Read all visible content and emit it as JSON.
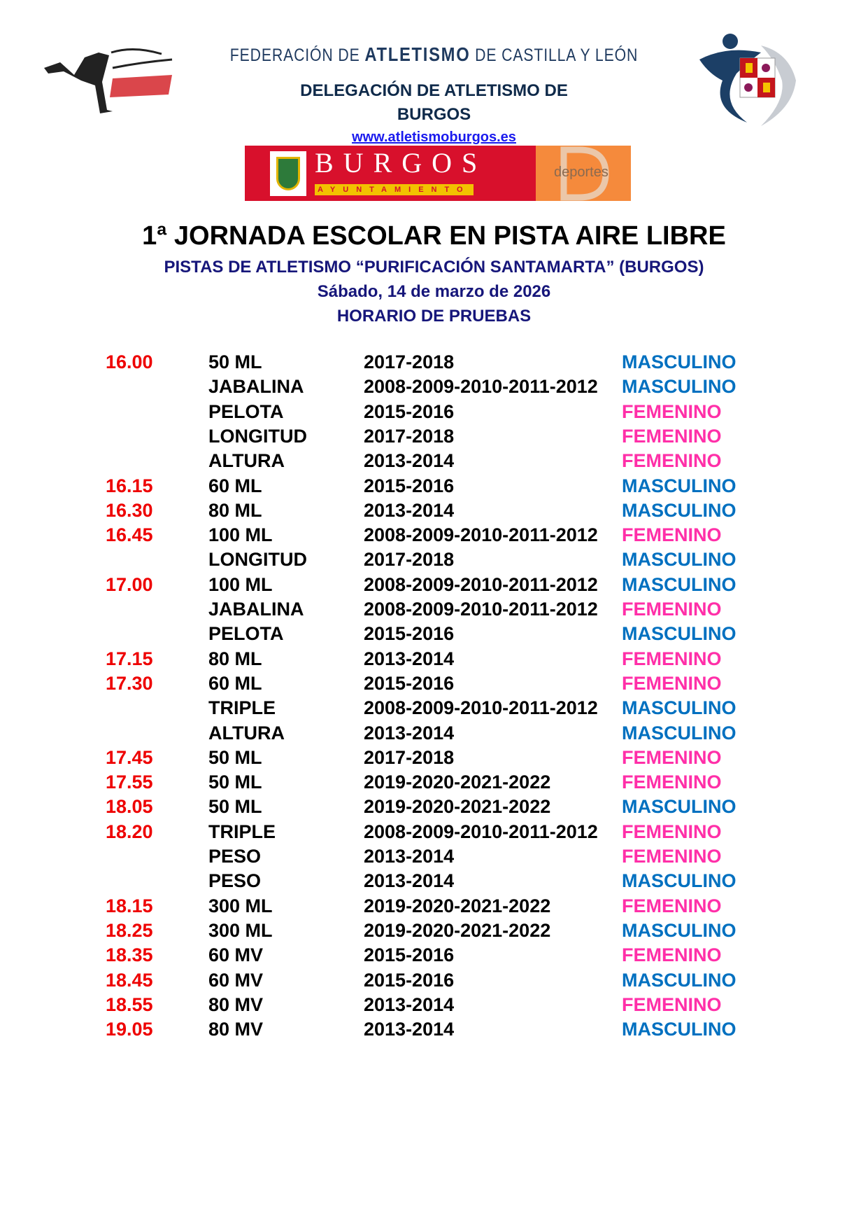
{
  "header": {
    "federation_pre": "FEDERACIÓN DE",
    "federation_mid": "ATLETISMO",
    "federation_post": "DE CASTILLA Y LEÓN",
    "delegation_line1": "DELEGACIÓN DE ATLETISMO DE",
    "delegation_line2": "BURGOS",
    "website": "www.atletismoburgos.es",
    "left_logo_text": "Atletismo BURGOS",
    "banner_city": "BURGOS",
    "banner_sub": "AYUNTAMIENTO",
    "banner_deportes": "deportes"
  },
  "title": "1ª JORNADA ESCOLAR EN PISTA AIRE LIBRE",
  "venue": "PISTAS DE ATLETISMO “PURIFICACIÓN SANTAMARTA” (BURGOS)",
  "date": "Sábado, 14 de marzo de 2026",
  "schedule_heading": "HORARIO DE PRUEBAS",
  "colors": {
    "time": "#ee0000",
    "masculino": "#0070c0",
    "femenino": "#ff2fa8",
    "navy": "#16167a"
  },
  "rows": [
    {
      "time": "16.00",
      "event": "50 ML",
      "years": "2017-2018",
      "gender": "MASCULINO"
    },
    {
      "time": "",
      "event": "JABALINA",
      "years": "2008-2009-2010-2011-2012",
      "gender": "MASCULINO"
    },
    {
      "time": "",
      "event": "PELOTA",
      "years": "2015-2016",
      "gender": "FEMENINO"
    },
    {
      "time": "",
      "event": "LONGITUD",
      "years": "2017-2018",
      "gender": "FEMENINO"
    },
    {
      "time": "",
      "event": "ALTURA",
      "years": "2013-2014",
      "gender": "FEMENINO"
    },
    {
      "time": "16.15",
      "event": "60 ML",
      "years": "2015-2016",
      "gender": "MASCULINO"
    },
    {
      "time": "16.30",
      "event": "80 ML",
      "years": "2013-2014",
      "gender": "MASCULINO"
    },
    {
      "time": "16.45",
      "event": "100 ML",
      "years": "2008-2009-2010-2011-2012",
      "gender": "FEMENINO"
    },
    {
      "time": "",
      "event": "LONGITUD",
      "years": "2017-2018",
      "gender": "MASCULINO"
    },
    {
      "time": "17.00",
      "event": "100 ML",
      "years": "2008-2009-2010-2011-2012",
      "gender": "MASCULINO"
    },
    {
      "time": "",
      "event": "JABALINA",
      "years": "2008-2009-2010-2011-2012",
      "gender": "FEMENINO"
    },
    {
      "time": "",
      "event": "PELOTA",
      "years": "2015-2016",
      "gender": "MASCULINO"
    },
    {
      "time": "17.15",
      "event": "80 ML",
      "years": "2013-2014",
      "gender": "FEMENINO"
    },
    {
      "time": "17.30",
      "event": "60 ML",
      "years": "2015-2016",
      "gender": "FEMENINO"
    },
    {
      "time": "",
      "event": "TRIPLE",
      "years": "2008-2009-2010-2011-2012",
      "gender": "MASCULINO"
    },
    {
      "time": "",
      "event": "ALTURA",
      "years": "2013-2014",
      "gender": "MASCULINO"
    },
    {
      "time": "17.45",
      "event": "50 ML",
      "years": "2017-2018",
      "gender": "FEMENINO"
    },
    {
      "time": "17.55",
      "event": "50 ML",
      "years": "2019-2020-2021-2022",
      "gender": "FEMENINO"
    },
    {
      "time": "18.05",
      "event": "50 ML",
      "years": "2019-2020-2021-2022",
      "gender": "MASCULINO"
    },
    {
      "time": "18.20",
      "event": "TRIPLE",
      "years": "2008-2009-2010-2011-2012",
      "gender": "FEMENINO"
    },
    {
      "time": "",
      "event": "PESO",
      "years": "2013-2014",
      "gender": "FEMENINO"
    },
    {
      "time": "",
      "event": "PESO",
      "years": "2013-2014",
      "gender": "MASCULINO"
    },
    {
      "time": "18.15",
      "event": "300 ML",
      "years": "2019-2020-2021-2022",
      "gender": "FEMENINO"
    },
    {
      "time": "18.25",
      "event": "300 ML",
      "years": "2019-2020-2021-2022",
      "gender": "MASCULINO"
    },
    {
      "time": "18.35",
      "event": "60 MV",
      "years": "2015-2016",
      "gender": "FEMENINO"
    },
    {
      "time": "18.45",
      "event": "60 MV",
      "years": "2015-2016",
      "gender": "MASCULINO"
    },
    {
      "time": "18.55",
      "event": "80 MV",
      "years": "2013-2014",
      "gender": "FEMENINO"
    },
    {
      "time": "19.05",
      "event": "80 MV",
      "years": "2013-2014",
      "gender": "MASCULINO"
    }
  ]
}
